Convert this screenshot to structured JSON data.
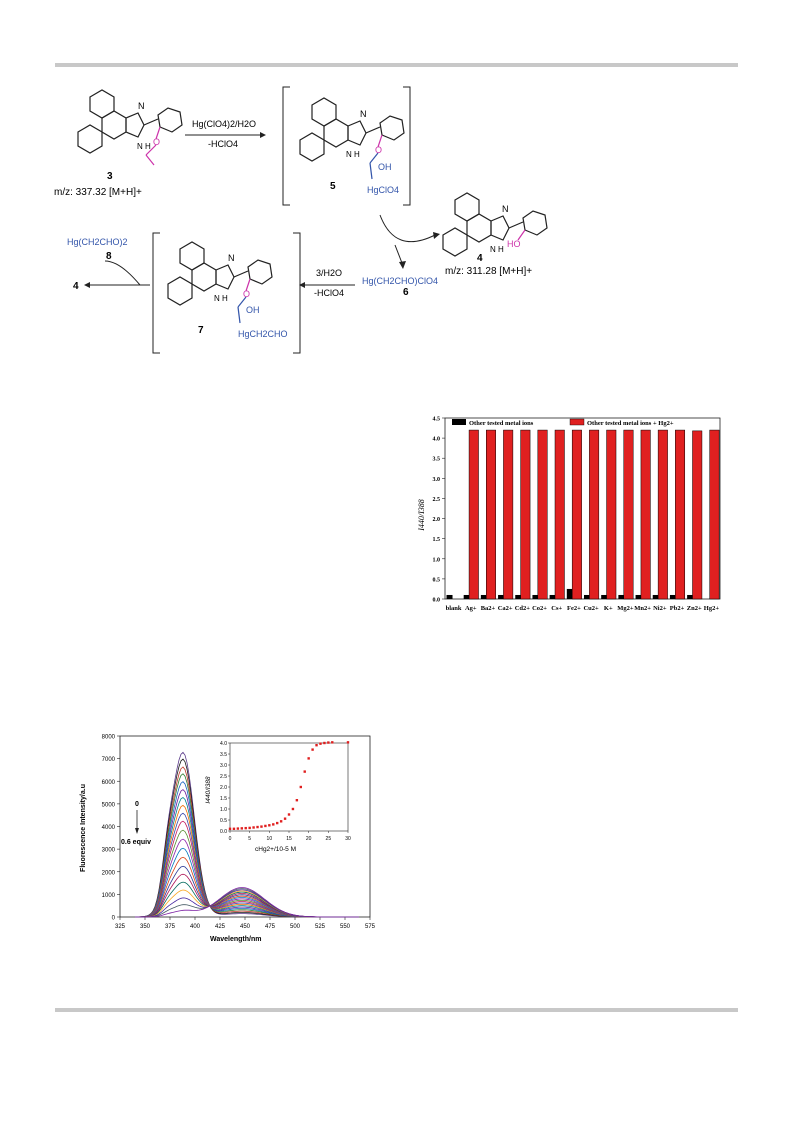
{
  "scheme": {
    "compound3_label": "3",
    "compound3_mz": "m/z: 337.32 [M+H]+",
    "arrow1_top": "Hg(ClO4)2/H2O",
    "arrow1_bottom": "-HClO4",
    "compound5_label": "5",
    "oh_label": "OH",
    "hgclo4_label": "HgClO4",
    "compound4_label": "4",
    "compound4_mz": "m/z: 311.28 [M+H]+",
    "ho_label": "HO",
    "compound6_formula": "Hg(CH2CHO)ClO4",
    "compound6_label": "6",
    "arrow2_top": "3/H2O",
    "arrow2_bottom": "-HClO4",
    "compound7_label": "7",
    "hgch2cho_label": "HgCH2CHO",
    "compound8_formula": "Hg(CH2CHO)2",
    "compound8_label": "8",
    "product4_label": "4",
    "n_label": "N",
    "nh_label": "N H"
  },
  "chart_data": [
    {
      "type": "bar",
      "ylabel": "I440/I388",
      "ylim": [
        0,
        4.5
      ],
      "yticks": [
        "0.0",
        "0.5",
        "1.0",
        "1.5",
        "2.0",
        "2.5",
        "3.0",
        "3.5",
        "4.0",
        "4.5"
      ],
      "categories": [
        "blank",
        "Ag+",
        "Ba2+",
        "Ca2+",
        "Cd2+",
        "Co2+",
        "Cs+",
        "Fe2+",
        "Cu2+",
        "K+",
        "Mg2+",
        "Mn2+",
        "Ni2+",
        "Pb2+",
        "Zn2+",
        "Hg2+"
      ],
      "series": [
        {
          "name": "Other tested metal ions",
          "color": "#000000",
          "values": [
            0.1,
            0.1,
            0.1,
            0.1,
            0.1,
            0.1,
            0.1,
            0.25,
            0.1,
            0.1,
            0.1,
            0.1,
            0.1,
            0.1,
            0.1,
            null
          ]
        },
        {
          "name": "Other tested metal ions + Hg2+",
          "color": "#e02020",
          "values": [
            null,
            4.2,
            4.2,
            4.2,
            4.2,
            4.2,
            4.2,
            4.2,
            4.2,
            4.2,
            4.2,
            4.2,
            4.2,
            4.2,
            4.18,
            4.2
          ]
        }
      ]
    },
    {
      "type": "line",
      "xlabel": "Wavelength/nm",
      "ylabel": "Fluorescence Intensity/a.u",
      "xlim": [
        325,
        575
      ],
      "ylim": [
        0,
        8000
      ],
      "xticks": [
        "325",
        "350",
        "375",
        "400",
        "425",
        "450",
        "475",
        "500",
        "525",
        "550",
        "575"
      ],
      "yticks": [
        "0",
        "1000",
        "2000",
        "3000",
        "4000",
        "5000",
        "6000",
        "7000",
        "8000"
      ],
      "annotation_start": "0",
      "annotation_end": "0.6 equiv",
      "peak_388_max": [
        7250,
        6950,
        6600,
        6300,
        5950,
        5600,
        5250,
        4900,
        4550,
        4200,
        3800,
        3400,
        3000,
        2600,
        2200,
        1850,
        1500,
        1150,
        800,
        500,
        250
      ],
      "peak_440": [
        150,
        200,
        260,
        320,
        380,
        440,
        500,
        560,
        620,
        680,
        740,
        800,
        860,
        920,
        980,
        1040,
        1100,
        1150,
        1200,
        1250,
        1300
      ],
      "series_colors": [
        "#5a3a8a",
        "#1a1a1a",
        "#c0392b",
        "#2e7d32",
        "#1565c0",
        "#6a1b9a",
        "#00838f",
        "#ef6c00",
        "#3949ab",
        "#c2185b",
        "#558b2f",
        "#8e24aa",
        "#0277bd",
        "#d84315",
        "#283593",
        "#ad1457",
        "#00695c",
        "#f9a825",
        "#4527a0",
        "#455a64",
        "#7b1fa2"
      ]
    },
    {
      "type": "scatter",
      "xlabel": "cHg2+/10-5 M",
      "ylabel": "I440/I388",
      "xlim": [
        0,
        30
      ],
      "ylim": [
        0.0,
        4.0
      ],
      "xticks": [
        "0",
        "5",
        "10",
        "15",
        "20",
        "25",
        "30"
      ],
      "yticks": [
        "0.0",
        "0.5",
        "1.0",
        "1.5",
        "2.0",
        "2.5",
        "3.0",
        "3.5",
        "4.0"
      ],
      "x": [
        0,
        1,
        2,
        3,
        4,
        5,
        6,
        7,
        8,
        9,
        10,
        11,
        12,
        13,
        14,
        15,
        16,
        17,
        18,
        19,
        20,
        21,
        22,
        23,
        24,
        25,
        26,
        30
      ],
      "y": [
        0.1,
        0.1,
        0.11,
        0.12,
        0.13,
        0.14,
        0.16,
        0.18,
        0.2,
        0.23,
        0.26,
        0.3,
        0.36,
        0.44,
        0.56,
        0.75,
        1.0,
        1.4,
        2.0,
        2.7,
        3.3,
        3.7,
        3.9,
        3.97,
        4.0,
        4.02,
        4.03,
        4.03
      ],
      "color": "#e02020"
    }
  ]
}
